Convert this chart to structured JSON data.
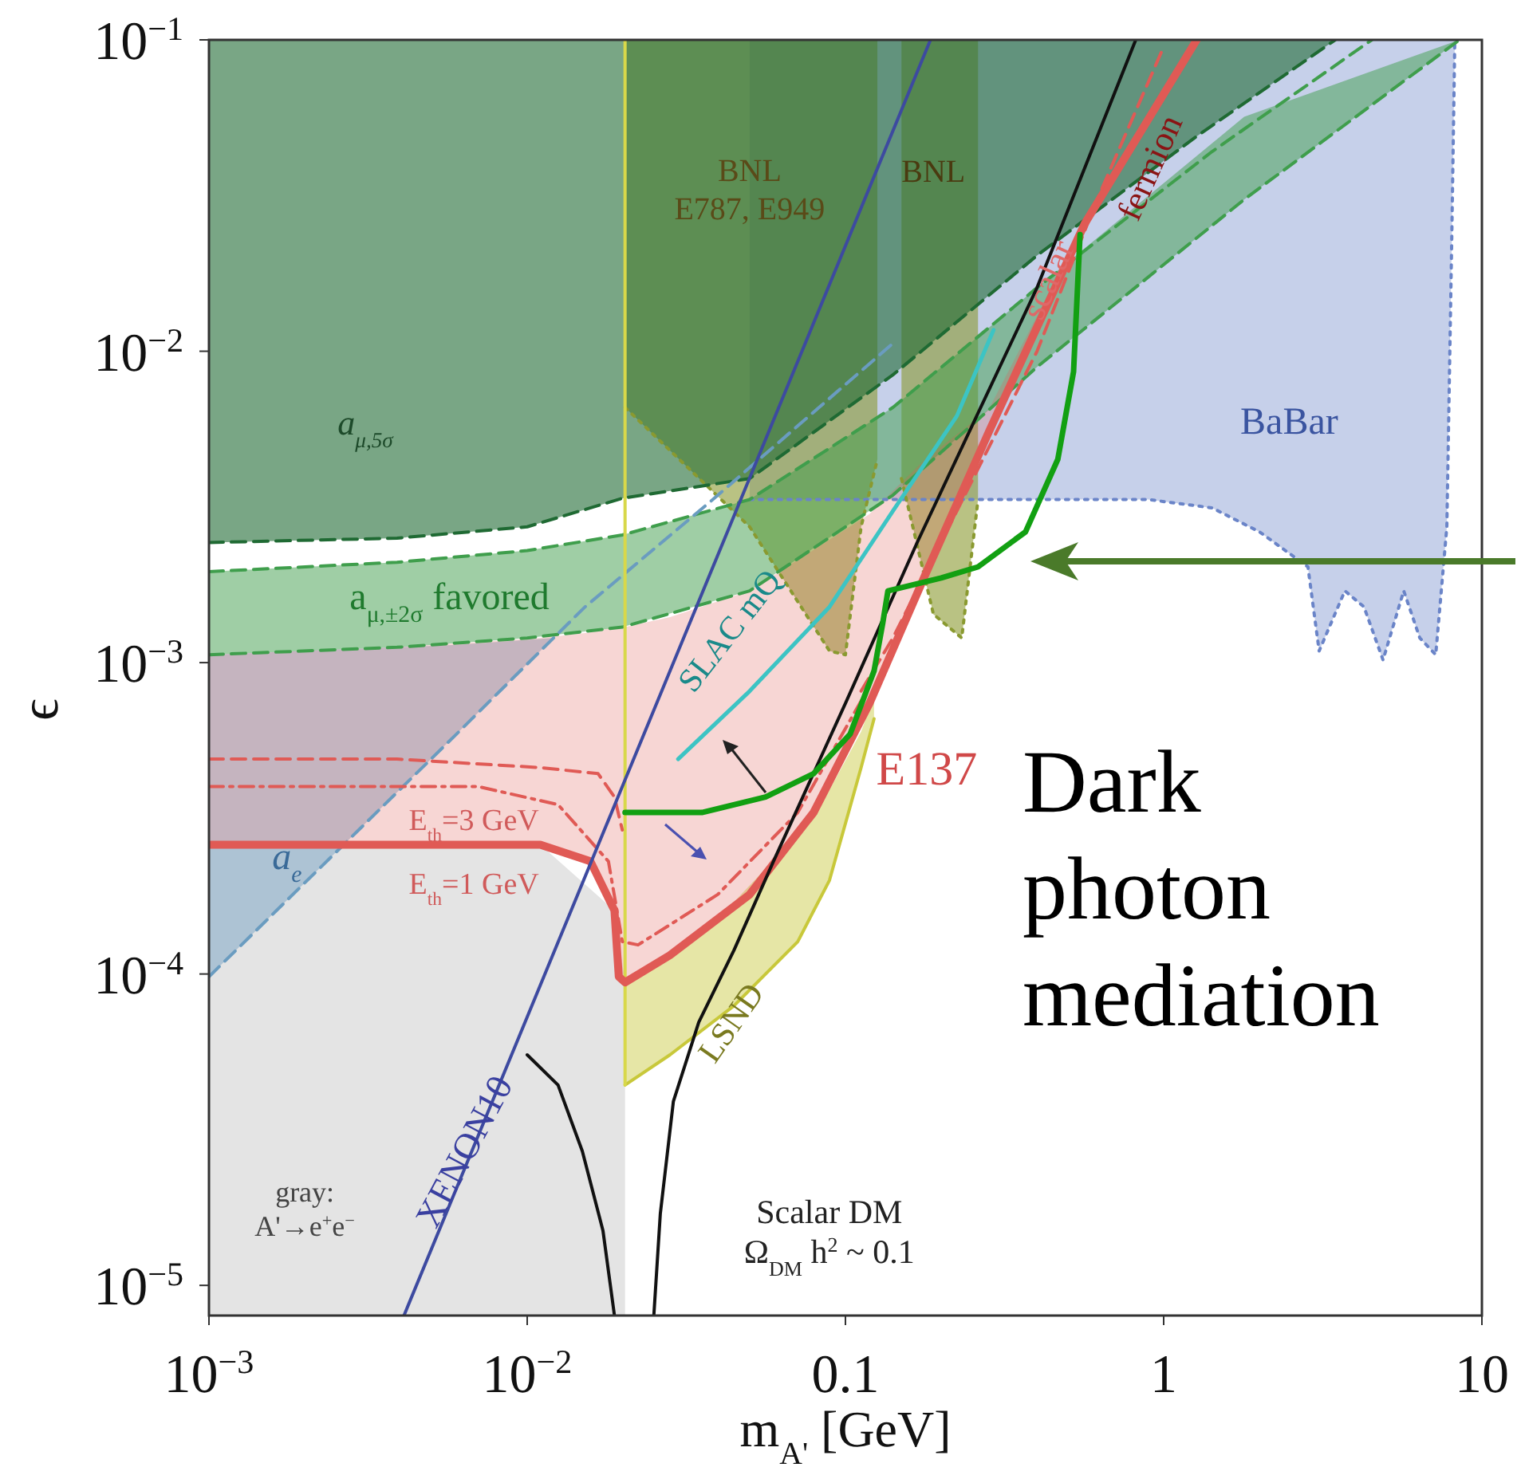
{
  "chart_data": {
    "type": "line",
    "xlabel": "m$_{A'}$ [GeV]",
    "ylabel": "ϵ",
    "log": "xy",
    "xlim": [
      0.001,
      10
    ],
    "ylim": [
      8e-06,
      0.1
    ],
    "xticks": [
      {
        "value": 0.001,
        "label": "10$^{−3}$"
      },
      {
        "value": 0.01,
        "label": "10$^{−2}$"
      },
      0.1,
      1,
      10
    ],
    "yticks": [
      {
        "value": 1e-05,
        "label": "10$^{−5}$"
      },
      {
        "value": 0.0001,
        "label": "10$^{−4}$"
      },
      {
        "value": 0.001,
        "label": "10$^{−3}$"
      },
      {
        "value": 0.01,
        "label": "10$^{−2}$"
      },
      {
        "value": 0.1,
        "label": "10$^{−1}$"
      }
    ],
    "series": [
      {
        "color": "#6a84c8",
        "line_style": "dotted",
        "x": [
          0.05,
          0.261,
          0.895,
          1.42,
          2.0,
          2.84,
          3.08,
          3.71,
          4.26,
          4.89,
          5.68,
          6.38,
          7.16,
          7.76,
          8.04,
          8.22
        ],
        "values": [
          0.00334,
          0.00334,
          0.00334,
          0.00314,
          0.00263,
          0.00203,
          0.00109,
          0.0017,
          0.00151,
          0.00102,
          0.0017,
          0.0012,
          0.00106,
          0.00273,
          0.0229,
          0.1
        ],
        "lower": [
          0.00334,
          0.00334,
          0.00334,
          0.00314,
          0.00263,
          0.00203,
          0.00109,
          0.0017,
          0.00151,
          0.00102,
          0.0017,
          0.0012,
          0.00106,
          0.00273,
          0.0229,
          0.1
        ],
        "upper": [
          0.1,
          0.1,
          0.1,
          0.1,
          0.1,
          0.1,
          0.1,
          0.1,
          0.1,
          0.1,
          0.1,
          0.1,
          0.1,
          0.1,
          0.1,
          0.1
        ]
      },
      {
        "type": "area",
        "color": "#e4e4e4",
        "x": [
          0.001,
          0.0039,
          0.011,
          0.0188,
          0.0203
        ],
        "values": [
          0.00026,
          0.00026,
          0.00026,
          0.00016,
          9.4e-05
        ]
      },
      {
        "color": "#8a9a30",
        "line_style": "dotted",
        "x": [
          0.0203,
          0.05,
          0.0891,
          0.1,
          0.112,
          0.126
        ],
        "values": [
          0.0066,
          0.00273,
          0.00109,
          0.00106,
          0.00273,
          0.0045
        ],
        "lower": [
          0.0066,
          0.00273,
          0.00109,
          0.00106,
          0.00273,
          0.0045
        ],
        "upper": [
          0.1,
          0.1,
          0.1,
          0.1,
          0.1,
          0.1
        ]
      },
      {
        "color": "#8a9a30",
        "line_style": "dotted",
        "x": [
          0.15,
          0.189,
          0.232,
          0.261
        ],
        "values": [
          0.0039,
          0.00143,
          0.0012,
          0.00334
        ],
        "lower": [
          0.0039,
          0.00143,
          0.0012,
          0.00334
        ],
        "upper": [
          0.1,
          0.1,
          0.1,
          0.1
        ]
      },
      {
        "color": "#1f6a33",
        "line_style": "dashed",
        "x": [
          0.001,
          0.0039,
          0.01,
          0.0199,
          0.05,
          0.141,
          0.4,
          1.27,
          3.46
        ],
        "values": [
          0.00243,
          0.00251,
          0.00273,
          0.00337,
          0.0039,
          0.0084,
          0.0203,
          0.049,
          0.1
        ],
        "lower": [
          0.00243,
          0.00251,
          0.00273,
          0.00337,
          0.0039,
          0.0084,
          0.0203,
          0.049,
          0.1
        ],
        "upper": [
          0.1,
          0.1,
          0.1,
          0.1,
          0.1,
          0.1,
          0.1,
          0.1,
          0.1
        ]
      },
      {
        "color": "#3f9e4c",
        "line_style": "dashed",
        "x": [
          0.001,
          0.0039,
          0.01,
          0.0199,
          0.05,
          0.141,
          0.4,
          1.79,
          8.5
        ],
        "values": [
          0.00106,
          0.00112,
          0.0012,
          0.0013,
          0.0017,
          0.00345,
          0.0089,
          0.0307,
          0.1
        ],
        "lower": [
          0.00106,
          0.00112,
          0.0012,
          0.0013,
          0.0017,
          0.00345,
          0.0089,
          0.0307,
          0.1
        ],
        "upper": [
          0.00196,
          0.0021,
          0.00229,
          0.00257,
          0.00334,
          0.0066,
          0.016,
          0.0566,
          0.1
        ]
      },
      {
        "color": "#3f9e4c",
        "line_style": "dashed",
        "x": [
          0.001,
          0.0039,
          0.01,
          0.0199,
          0.05,
          0.141,
          0.4,
          1.42,
          4.51
        ],
        "values": [
          0.00196,
          0.0021,
          0.00229,
          0.00257,
          0.00334,
          0.0066,
          0.016,
          0.0438,
          0.1
        ]
      },
      {
        "color": "#6a9cc0",
        "line_style": "dashed",
        "x": [
          0.001,
          0.006,
          0.012,
          0.0152,
          0.0383,
          0.141
        ],
        "values": [
          9.8e-05,
          0.00059,
          0.00119,
          0.00151,
          0.00334,
          0.0106
        ],
        "lower": [
          9.8e-05,
          0.00059,
          0.00119,
          0.00151,
          0.00334,
          0.0106
        ],
        "upper": [
          0.00106,
          0.00114,
          0.0012,
          0.00151,
          0.00334,
          0.0106
        ]
      },
      {
        "color": "#c8c83a",
        "line_style": "solid",
        "x": [
          0.0203,
          0.0281,
          0.0446,
          0.0708,
          0.0891,
          0.112,
          0.123
        ],
        "values": [
          4.4e-05,
          5.5e-05,
          7.9e-05,
          0.000127,
          0.0002,
          0.00046,
          0.00066
        ],
        "lower": [
          4.4e-05,
          5.5e-05,
          7.9e-05,
          0.000127,
          0.0002,
          0.00046,
          0.00066
        ],
        "upper": [
          9.4e-05,
          0.000115,
          0.00017,
          0.00028,
          0.00039,
          0.0006,
          0.00078
        ]
      },
      {
        "color": "#d8d84a",
        "line_style": "solid",
        "x": [
          0.0203,
          0.0203
        ],
        "values": [
          4.4e-05,
          0.1
        ]
      },
      {
        "color": "#e05a55",
        "line_style": "dashed",
        "x": [
          0.001,
          0.0039,
          0.011,
          0.0167,
          0.0188,
          0.0199
        ],
        "values": [
          0.00049,
          0.00049,
          0.00046,
          0.00044,
          0.00037,
          0.00029
        ]
      },
      {
        "color": "#e05a55",
        "line_style": "dashdot",
        "x": [
          0.001,
          0.007,
          0.0125,
          0.018,
          0.0199,
          0.0223,
          0.0397,
          0.0708,
          0.119
        ],
        "values": [
          0.0004,
          0.0004,
          0.00035,
          0.00023,
          0.000127,
          0.000124,
          0.00018,
          0.00033,
          0.00084
        ]
      },
      {
        "color": "#e05a55",
        "line_style": "solid",
        "x": [
          0.001,
          0.0039,
          0.011,
          0.0158,
          0.0188,
          0.0194,
          0.0203,
          0.0281,
          0.05,
          0.0794,
          0.119,
          0.178,
          0.282,
          0.565,
          1.27
        ],
        "values": [
          0.00026,
          0.00026,
          0.00026,
          0.00023,
          0.00016,
          9.8e-05,
          9.4e-05,
          0.000115,
          0.00018,
          0.00033,
          0.00074,
          0.00191,
          0.0055,
          0.0257,
          0.1
        ],
        "lower": [
          0.00026,
          0.00026,
          0.00026,
          0.00023,
          0.00016,
          9.8e-05,
          9.4e-05,
          0.000115,
          0.00018,
          0.00033,
          0.00074,
          0.00191,
          0.0055,
          0.0257,
          0.1
        ],
        "upper": [
          0.00106,
          0.00112,
          0.0012,
          0.00125,
          0.0013,
          0.0013,
          0.0013,
          0.0014,
          0.0017,
          0.0023,
          0.003,
          0.0045,
          0.0065,
          0.0257,
          0.1
        ]
      },
      {
        "color": "#e05a55",
        "line_style": "dashed",
        "x": [
          0.112,
          0.141,
          0.224,
          0.4,
          0.612,
          1.0
        ],
        "values": [
          0.00081,
          0.0012,
          0.00307,
          0.01,
          0.03,
          0.095
        ]
      },
      {
        "color": "#3cc4c4",
        "line_style": "solid",
        "x": [
          0.0298,
          0.05,
          0.0891,
          0.141,
          0.224,
          0.292
        ],
        "values": [
          0.00049,
          0.00081,
          0.00151,
          0.00307,
          0.0062,
          0.0117
        ]
      },
      {
        "color": "#3d4aa0",
        "line_style": "solid",
        "x": [
          0.0041,
          0.185
        ],
        "values": [
          8e-06,
          0.1
        ]
      },
      {
        "color": "#111111",
        "line_style": "solid",
        "x": [
          0.01,
          0.0125,
          0.0149,
          0.0173,
          0.0188
        ],
        "values": [
          5.5e-05,
          4.4e-05,
          2.7e-05,
          1.5e-05,
          8e-06
        ]
      },
      {
        "color": "#111111",
        "line_style": "solid",
        "x": [
          0.025,
          0.0262,
          0.0288,
          0.0346,
          0.0446,
          0.0594,
          0.1,
          0.168,
          0.4,
          0.817
        ],
        "values": [
          8e-06,
          1.7e-05,
          3.9e-05,
          7e-05,
          0.000119,
          0.00023,
          0.00074,
          0.00243,
          0.016,
          0.1
        ]
      },
      {
        "color": "#12a012",
        "line_style": "solid",
        "x": [
          0.0203,
          0.0354,
          0.0561,
          0.0794,
          0.1035,
          0.123,
          0.131,
          0.136,
          0.2,
          0.261,
          0.368,
          0.465,
          0.521,
          0.546
        ],
        "values": [
          0.00033,
          0.00033,
          0.00037,
          0.00044,
          0.00059,
          0.00094,
          0.00134,
          0.0017,
          0.00187,
          0.00203,
          0.00263,
          0.0045,
          0.0086,
          0.0237
        ]
      }
    ],
    "annotations": [
      "BNL\nE787, E949",
      "BNL",
      "scalar",
      "fermion",
      "BaBar",
      "a$_{μ,5σ}$",
      "a$_{μ,±2σ}$ favored",
      "SLAC mQ",
      "E137",
      "E$_{th}$=3 GeV",
      "E$_{th}$=1 GeV",
      "a$_{e}$",
      "LSND",
      "XENON10",
      "gray:\nA'→e$^{+}$e$^{−}$",
      "Scalar DM\nΩ$_{DM}$ h$^{2}$ ~ 0.1",
      "Dark\nphoton\nmediation"
    ]
  }
}
